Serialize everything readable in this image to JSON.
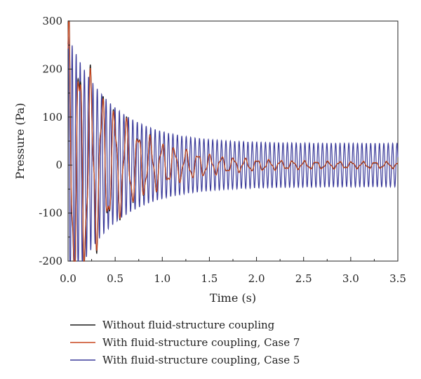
{
  "chart_data": {
    "type": "line",
    "title": "",
    "xlabel": "Time (s)",
    "ylabel": "Pressure (Pa)",
    "xlim": [
      0,
      3.5
    ],
    "ylim": [
      -200,
      300
    ],
    "x_ticks": [
      0.0,
      0.5,
      1.0,
      1.5,
      2.0,
      2.5,
      3.0,
      3.5
    ],
    "x_tick_labels": [
      "0.0",
      "0.5",
      "1.0",
      "1.5",
      "2.0",
      "2.5",
      "3.0",
      "3.5"
    ],
    "y_ticks": [
      -200,
      -100,
      0,
      100,
      200,
      300
    ],
    "y_tick_labels": [
      "-200",
      "-100",
      "0",
      "100",
      "200",
      "300"
    ],
    "grid": false,
    "legend_position": "bottom",
    "series": [
      {
        "name": "Without fluid-structure coupling",
        "color": "#1a1a1a",
        "frequency_hz": 8.0,
        "initial_amplitude": 270,
        "decay_rate": 2.0,
        "final_amplitude": 5
      },
      {
        "name": "With fluid-structure coupling, Case 7",
        "color": "#c8461e",
        "frequency_hz": 8.0,
        "initial_amplitude": 260,
        "decay_rate": 2.0,
        "final_amplitude": 6
      },
      {
        "name": "With fluid-structure coupling, Case 5",
        "color": "#3a3a9a",
        "frequency_hz": 21.5,
        "initial_amplitude": 270,
        "decay_rate": 2.2,
        "final_amplitude": 45
      }
    ]
  }
}
